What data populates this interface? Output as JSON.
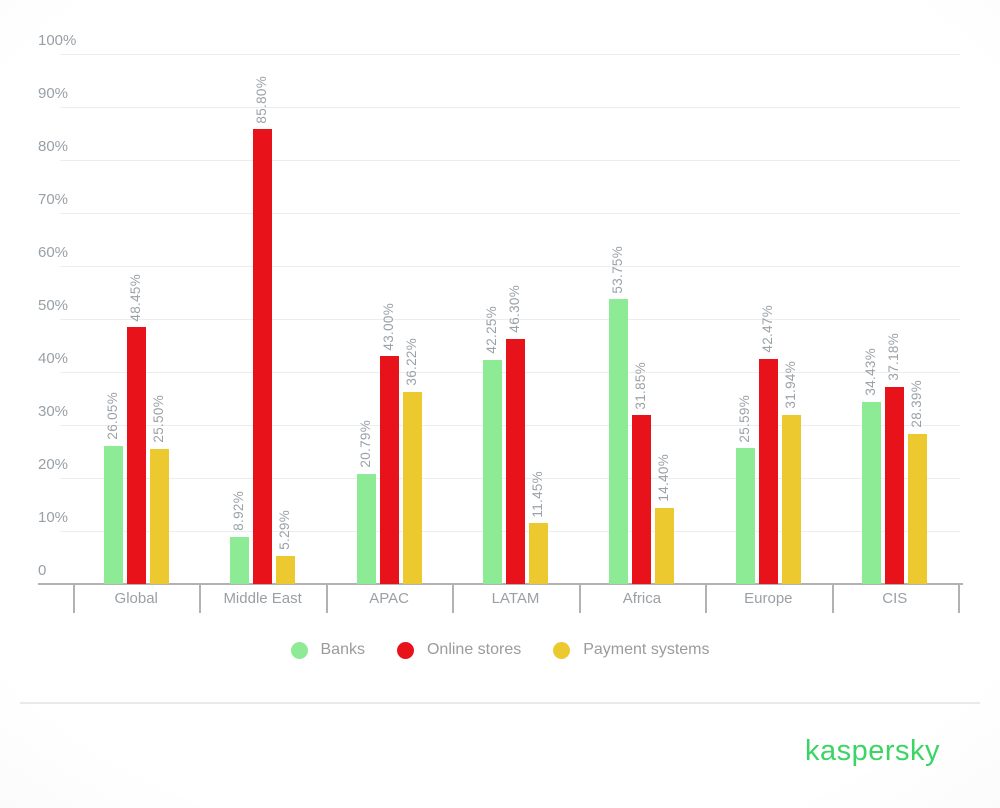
{
  "chart_data": {
    "type": "bar",
    "title": "",
    "categories": [
      "Global",
      "Middle East",
      "APAC",
      "LATAM",
      "Africa",
      "Europe",
      "CIS"
    ],
    "series": [
      {
        "name": "Banks",
        "color": "#8deb96",
        "values": [
          26.05,
          8.92,
          20.79,
          42.25,
          53.75,
          25.59,
          34.43
        ]
      },
      {
        "name": "Online stores",
        "color": "#e8121a",
        "values": [
          48.45,
          85.8,
          43.0,
          46.3,
          31.85,
          42.47,
          37.18
        ]
      },
      {
        "name": "Payment systems",
        "color": "#ecc92f",
        "values": [
          25.5,
          5.29,
          36.22,
          11.45,
          14.4,
          31.94,
          28.39
        ]
      }
    ],
    "value_label_format": "{value:.2f}%",
    "ytick_labels": [
      "0",
      "10%",
      "20%",
      "30%",
      "40%",
      "50%",
      "60%",
      "70%",
      "80%",
      "90%",
      "100%"
    ],
    "ylim": [
      0,
      100
    ],
    "grid": true,
    "legend_position": "bottom",
    "value_labels_rotated": true
  },
  "colors": {
    "grid": "#ededed",
    "axis": "#b2b2b2",
    "axis_text": "#98a0a6",
    "value_text": "#9aa1a7",
    "legend_text": "#9b9b9b"
  },
  "branding": {
    "logo_text": "kaspersky",
    "logo_color": "#3bd566"
  }
}
